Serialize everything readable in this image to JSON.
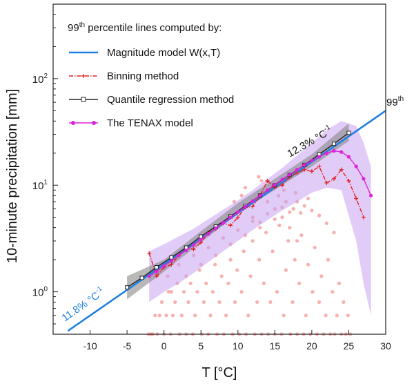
{
  "chart_data": {
    "type": "scatter",
    "title": "",
    "xlabel": "T [°C]",
    "ylabel": "10-minute precipitation [mm]",
    "xlim": [
      -15,
      30
    ],
    "ylim": [
      0.4,
      500
    ],
    "yscale": "log",
    "x_ticks": [
      -10,
      -5,
      0,
      5,
      10,
      15,
      20,
      25,
      30
    ],
    "x_tick_labels": [
      "-10",
      "-5",
      "0",
      "5",
      "10",
      "15",
      "20",
      "25",
      "30"
    ],
    "y_ticks": [
      1,
      10,
      100
    ],
    "y_tick_labels": [
      {
        "base": "10",
        "exp": "0"
      },
      {
        "base": "10",
        "exp": "1"
      },
      {
        "base": "10",
        "exp": "2"
      }
    ],
    "legend": {
      "position": "top-left",
      "title": "99th percentile lines computed by:",
      "title_parts": [
        "99",
        "th",
        " percentile lines computed by:"
      ],
      "entries": [
        {
          "label": "Magnitude model W(x,T)",
          "color": "#1f7fe0",
          "style": "solid"
        },
        {
          "label": "Binning method",
          "color": "#e02020",
          "style": "dashdot-plus"
        },
        {
          "label": "Quantile regression method",
          "color": "#222222",
          "style": "solid-square"
        },
        {
          "label": "The TENAX model",
          "color": "#dd22dd",
          "style": "solid-dot"
        }
      ]
    },
    "annotations": {
      "slope_low": {
        "base": "11.8% °C",
        "exp": "-1",
        "color": "#1f7fe0"
      },
      "slope_high": {
        "base": "12.3% °C",
        "exp": "-1",
        "color": "#111111"
      },
      "percentile": {
        "base": "99",
        "exp": "th",
        "color": "#111111"
      }
    },
    "series": [
      {
        "name": "Magnitude model W(x,T)",
        "color": "#1f7fe0",
        "x": [
          -13,
          30
        ],
        "y": [
          0.43,
          50
        ]
      },
      {
        "name": "Binning method",
        "color": "#e02020",
        "x": [
          -2,
          -1,
          0,
          1,
          2,
          3,
          4,
          5,
          6,
          7,
          8,
          9,
          10,
          11,
          12,
          13,
          14,
          15,
          16,
          17,
          18,
          19,
          20,
          21,
          22,
          23,
          24,
          25,
          26,
          27
        ],
        "y": [
          2.3,
          1.4,
          1.7,
          1.8,
          2.2,
          2.6,
          2.5,
          2.9,
          3.6,
          3.9,
          4.4,
          4.2,
          5.0,
          6.2,
          6.3,
          8.0,
          11.0,
          9.5,
          10.0,
          12.0,
          13.0,
          14.0,
          13.5,
          15.0,
          10.5,
          11.5,
          14.0,
          11.0,
          7.5,
          5.0
        ]
      },
      {
        "name": "Quantile regression method",
        "color": "#222222",
        "x": [
          -5,
          -3,
          -1,
          1,
          3,
          5,
          7,
          9,
          11,
          13,
          15,
          17,
          19,
          21,
          23,
          25
        ],
        "y": [
          1.1,
          1.35,
          1.7,
          2.1,
          2.6,
          3.3,
          4.1,
          5.1,
          6.4,
          8.0,
          10.0,
          12.5,
          15.5,
          19.5,
          24.5,
          31
        ]
      },
      {
        "name": "The TENAX model",
        "color": "#dd22dd",
        "x": [
          -2,
          -1,
          0,
          1,
          2,
          3,
          4,
          5,
          6,
          7,
          8,
          9,
          10,
          11,
          12,
          13,
          14,
          15,
          16,
          17,
          18,
          19,
          20,
          21,
          22,
          23,
          24,
          25,
          26,
          27,
          28
        ],
        "y": [
          1.4,
          1.55,
          1.75,
          1.95,
          2.2,
          2.45,
          2.75,
          3.1,
          3.5,
          3.95,
          4.45,
          5.0,
          5.6,
          6.3,
          7.1,
          8.0,
          9.0,
          10.1,
          11.3,
          12.6,
          14.0,
          15.5,
          17.0,
          18.5,
          20.0,
          21.0,
          20.5,
          18.5,
          15.0,
          11.5,
          8.0
        ]
      }
    ],
    "bands": [
      {
        "name": "TENAX uncertainty",
        "color": "#c9a0f0",
        "x": [
          -2,
          0,
          2,
          4,
          6,
          8,
          10,
          12,
          14,
          16,
          18,
          20,
          22,
          24,
          26,
          27,
          28
        ],
        "lower": [
          0.8,
          1.0,
          1.2,
          1.5,
          1.9,
          2.4,
          3.0,
          3.8,
          4.7,
          5.8,
          7.0,
          8.5,
          9.5,
          9.0,
          3.0,
          1.2,
          0.6
        ],
        "upper": [
          2.4,
          2.8,
          3.3,
          3.9,
          4.8,
          5.9,
          7.2,
          9.0,
          11.5,
          14.5,
          19.0,
          25.0,
          33.0,
          40.0,
          36.0,
          25.0,
          15.0
        ]
      },
      {
        "name": "Quantile regression uncertainty",
        "color": "#888888",
        "x": [
          -5,
          0,
          5,
          10,
          15,
          20,
          25
        ],
        "lower": [
          0.85,
          1.55,
          2.9,
          5.4,
          9.1,
          15.0,
          26.0
        ],
        "upper": [
          1.4,
          2.0,
          3.7,
          6.8,
          11.5,
          19.5,
          38.0
        ]
      }
    ],
    "scatter_points": {
      "name": "10-minute precipitation observations",
      "color": "#f07070",
      "x": [
        -2.1,
        -1.8,
        -1.5,
        -1.2,
        -0.9,
        -0.6,
        -0.3,
        0.0,
        0.3,
        0.6,
        0.9,
        1.2,
        1.5,
        1.8,
        2.1,
        2.4,
        2.7,
        3.0,
        3.3,
        3.6,
        3.9,
        4.2,
        4.5,
        4.8,
        5.1,
        5.4,
        5.7,
        6.0,
        6.3,
        6.6,
        6.9,
        7.2,
        7.5,
        7.8,
        8.1,
        8.4,
        8.7,
        9.0,
        9.3,
        9.6,
        9.9,
        10.2,
        10.5,
        10.8,
        11.1,
        11.4,
        11.7,
        12.0,
        12.3,
        12.6,
        12.9,
        13.2,
        13.5,
        13.8,
        14.1,
        14.4,
        14.7,
        15.0,
        15.3,
        15.6,
        15.9,
        16.2,
        16.5,
        16.8,
        17.1,
        17.4,
        17.7,
        18.0,
        18.3,
        18.6,
        18.9,
        19.2,
        19.5,
        19.8,
        20.1,
        20.4,
        20.7,
        21.0,
        21.3,
        21.6,
        21.9,
        22.2,
        22.5,
        22.8,
        23.1,
        23.4,
        23.7,
        24.0,
        24.3,
        24.6,
        24.9,
        25.2,
        0.5,
        2.0,
        4.0,
        6.0,
        8.0,
        10.0,
        12.0,
        14.0,
        16.0,
        18.0,
        20.0,
        22.0,
        1.0,
        3.0,
        5.0,
        7.0,
        9.0,
        11.0,
        13.0,
        15.0,
        17.0,
        19.0,
        21.0,
        23.0,
        11.5,
        12.5,
        13.5,
        14.5,
        15.5,
        16.5,
        17.5,
        18.5,
        12.0,
        13.0,
        14.0,
        15.0,
        16.0,
        17.0,
        18.0,
        10.5,
        11.0,
        13.2,
        14.8,
        16.2,
        17.8,
        19.5,
        9.5,
        12.8
      ],
      "y": [
        0.4,
        0.4,
        0.4,
        0.6,
        0.4,
        0.6,
        0.8,
        0.4,
        0.6,
        1.0,
        0.4,
        0.6,
        0.8,
        1.2,
        0.4,
        0.6,
        1.0,
        0.4,
        0.8,
        1.2,
        0.4,
        0.6,
        1.0,
        1.6,
        0.4,
        0.8,
        1.2,
        0.4,
        0.6,
        1.0,
        1.8,
        0.4,
        0.8,
        1.4,
        0.4,
        0.6,
        1.2,
        2.0,
        0.4,
        0.8,
        1.6,
        0.4,
        1.0,
        2.4,
        0.4,
        0.6,
        1.4,
        3.0,
        0.4,
        0.8,
        2.0,
        0.4,
        1.2,
        3.6,
        0.4,
        0.8,
        2.4,
        0.4,
        1.0,
        4.2,
        0.4,
        0.6,
        1.6,
        3.0,
        0.4,
        0.8,
        2.0,
        0.4,
        1.2,
        3.4,
        0.4,
        0.6,
        1.8,
        0.4,
        1.0,
        2.6,
        0.4,
        0.8,
        1.4,
        0.4,
        0.6,
        2.0,
        0.4,
        1.0,
        0.4,
        0.6,
        1.2,
        0.4,
        0.8,
        0.4,
        0.6,
        0.4,
        1.4,
        1.8,
        2.2,
        2.6,
        3.2,
        3.8,
        4.6,
        5.4,
        6.2,
        7.0,
        5.8,
        4.4,
        1.0,
        1.4,
        1.8,
        2.2,
        2.8,
        3.4,
        4.0,
        4.8,
        5.6,
        6.4,
        5.2,
        3.6,
        6.5,
        7.5,
        8.5,
        9.0,
        8.0,
        7.0,
        6.0,
        5.5,
        5.0,
        4.5,
        7.0,
        6.0,
        5.0,
        4.0,
        3.0,
        8.0,
        9.5,
        11.0,
        10.0,
        9.0,
        8.5,
        7.5,
        7.0,
        12.0
      ]
    }
  }
}
